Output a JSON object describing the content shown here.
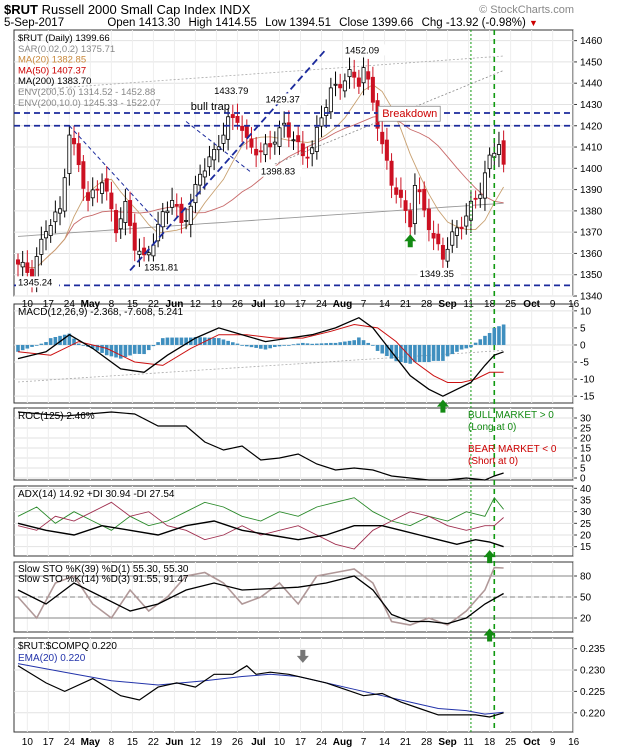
{
  "header": {
    "symbol": "$RUT",
    "description": "Russell 2000 Small Cap Index",
    "exchange": "INDX",
    "watermark": "© StockCharts.com",
    "date": "5-Sep-2017",
    "open_label": "Open",
    "open": "1413.30",
    "high_label": "High",
    "high": "1414.55",
    "low_label": "Low",
    "low": "1394.51",
    "close_label": "Close",
    "close": "1399.66",
    "chg_label": "Chg",
    "chg": "-13.92 (-0.98%)",
    "chg_arrow": "▼"
  },
  "chart_data": [
    {
      "type": "candlestick",
      "panel": "price",
      "legend": [
        {
          "text": "$RUT (Daily) 1399.66",
          "color": "#000000"
        },
        {
          "text": "SAR(0.02,0.2) 1375.71",
          "color": "#888888"
        },
        {
          "text": "MA(20) 1382.85",
          "color": "#c8883a"
        },
        {
          "text": "MA(50) 1407.37",
          "color": "#cc0000"
        },
        {
          "text": "MA(200) 1383.70",
          "color": "#000000"
        },
        {
          "text": "ENV(200,5.0) 1314.52 - 1452.88",
          "color": "#888888"
        },
        {
          "text": "ENV(200,10.0) 1245.33 - 1522.07",
          "color": "#888888"
        }
      ],
      "ylim": [
        1340,
        1465
      ],
      "yticks": [
        1340,
        1350,
        1360,
        1370,
        1380,
        1390,
        1400,
        1410,
        1420,
        1430,
        1440,
        1450,
        1460
      ],
      "xtick_labels": [
        "10",
        "17",
        "24",
        "May",
        "8",
        "15",
        "22",
        "Jun",
        "12",
        "19",
        "26",
        "Jul",
        "10",
        "17",
        "24",
        "Aug",
        "7",
        "14",
        "21",
        "28",
        "Sep",
        "11",
        "18",
        "25",
        "Oct",
        "9",
        "16"
      ],
      "price_labels": [
        "1345.24",
        "1351.81",
        "1433.79",
        "1429.37",
        "1452.09",
        "1398.83",
        "1349.35"
      ],
      "annotations": {
        "bull_trap": "bull trap",
        "breakdown": "Breakdown"
      },
      "horizontal_levels": [
        1345,
        1420,
        1426
      ],
      "close_path": [
        [
          0,
          1355
        ],
        [
          3,
          1350
        ],
        [
          6,
          1372
        ],
        [
          9,
          1380
        ],
        [
          11,
          1416
        ],
        [
          13,
          1402
        ],
        [
          15,
          1384
        ],
        [
          18,
          1395
        ],
        [
          21,
          1372
        ],
        [
          23,
          1382
        ],
        [
          25,
          1364
        ],
        [
          27,
          1357
        ],
        [
          29,
          1366
        ],
        [
          31,
          1378
        ],
        [
          33,
          1386
        ],
        [
          35,
          1374
        ],
        [
          37,
          1382
        ],
        [
          39,
          1398
        ],
        [
          42,
          1407
        ],
        [
          45,
          1422
        ],
        [
          47,
          1424
        ],
        [
          49,
          1412
        ],
        [
          52,
          1407
        ],
        [
          55,
          1414
        ],
        [
          57,
          1420
        ],
        [
          59,
          1414
        ],
        [
          61,
          1406
        ],
        [
          63,
          1409
        ],
        [
          65,
          1425
        ],
        [
          67,
          1436
        ],
        [
          69,
          1440
        ],
        [
          71,
          1444
        ],
        [
          73,
          1441
        ],
        [
          74,
          1447
        ],
        [
          76,
          1432
        ],
        [
          78,
          1410
        ],
        [
          80,
          1394
        ],
        [
          82,
          1384
        ],
        [
          84,
          1375
        ],
        [
          85,
          1392
        ],
        [
          87,
          1381
        ],
        [
          89,
          1366
        ],
        [
          91,
          1359
        ],
        [
          93,
          1368
        ],
        [
          95,
          1374
        ],
        [
          97,
          1382
        ],
        [
          99,
          1390
        ],
        [
          101,
          1404
        ],
        [
          103,
          1413
        ],
        [
          104,
          1400
        ]
      ]
    },
    {
      "type": "line",
      "panel": "macd",
      "legend": "MACD(12,26,9) -2.368, -7.608, 5.241",
      "ylim": [
        -17,
        12
      ],
      "yticks": [
        -15,
        -10,
        -5,
        0,
        5,
        10
      ],
      "macd": [
        [
          0,
          -4
        ],
        [
          6,
          -2
        ],
        [
          11,
          3
        ],
        [
          16,
          -1
        ],
        [
          22,
          -7
        ],
        [
          27,
          -8
        ],
        [
          32,
          -3
        ],
        [
          38,
          2
        ],
        [
          43,
          5
        ],
        [
          48,
          3
        ],
        [
          53,
          1
        ],
        [
          58,
          2
        ],
        [
          63,
          3
        ],
        [
          68,
          5
        ],
        [
          73,
          8
        ],
        [
          76,
          5
        ],
        [
          80,
          -2
        ],
        [
          84,
          -9
        ],
        [
          88,
          -13
        ],
        [
          91,
          -15
        ],
        [
          94,
          -13
        ],
        [
          97,
          -11
        ],
        [
          100,
          -6
        ],
        [
          102,
          -3
        ],
        [
          104,
          -2
        ]
      ],
      "signal": [
        [
          0,
          -2
        ],
        [
          7,
          -3
        ],
        [
          13,
          1
        ],
        [
          19,
          -1
        ],
        [
          25,
          -5
        ],
        [
          31,
          -6
        ],
        [
          37,
          -1
        ],
        [
          43,
          3
        ],
        [
          49,
          3
        ],
        [
          55,
          2
        ],
        [
          61,
          2
        ],
        [
          67,
          4
        ],
        [
          72,
          6
        ],
        [
          77,
          5
        ],
        [
          81,
          1
        ],
        [
          85,
          -5
        ],
        [
          89,
          -9
        ],
        [
          92,
          -11
        ],
        [
          95,
          -11
        ],
        [
          98,
          -10
        ],
        [
          101,
          -8
        ],
        [
          104,
          -8
        ]
      ]
    },
    {
      "type": "line",
      "panel": "roc",
      "legend": "ROC(125) 2.46%",
      "ylim": [
        -1,
        35
      ],
      "yticks": [
        0,
        5,
        10,
        15,
        20,
        25,
        30
      ],
      "notes": [
        "BULL MARKET > 0",
        "(Long at 0)",
        "BEAR MARKET < 0",
        "(Short at 0)"
      ],
      "roc": [
        [
          0,
          33
        ],
        [
          10,
          31
        ],
        [
          20,
          33
        ],
        [
          25,
          32
        ],
        [
          30,
          26
        ],
        [
          36,
          26
        ],
        [
          40,
          18
        ],
        [
          44,
          14
        ],
        [
          48,
          16
        ],
        [
          52,
          9
        ],
        [
          56,
          10
        ],
        [
          60,
          12
        ],
        [
          64,
          7
        ],
        [
          68,
          4
        ],
        [
          72,
          5
        ],
        [
          76,
          4
        ],
        [
          80,
          1
        ],
        [
          84,
          0
        ],
        [
          88,
          -1
        ],
        [
          92,
          -1
        ],
        [
          96,
          0
        ],
        [
          100,
          -1
        ],
        [
          102,
          1
        ],
        [
          104,
          2.5
        ]
      ]
    },
    {
      "type": "line",
      "panel": "adx",
      "legend": "ADX(14) 14.92 +DI 30.94 -DI 27.54",
      "ylim": [
        11,
        41
      ],
      "yticks": [
        15,
        20,
        25,
        30,
        35,
        40
      ],
      "adx": [
        [
          0,
          25
        ],
        [
          6,
          22
        ],
        [
          12,
          20
        ],
        [
          18,
          24
        ],
        [
          24,
          22
        ],
        [
          30,
          20
        ],
        [
          36,
          24
        ],
        [
          42,
          26
        ],
        [
          48,
          22
        ],
        [
          54,
          20
        ],
        [
          60,
          18
        ],
        [
          66,
          20
        ],
        [
          72,
          24
        ],
        [
          78,
          24
        ],
        [
          82,
          22
        ],
        [
          86,
          20
        ],
        [
          90,
          18
        ],
        [
          94,
          16
        ],
        [
          98,
          18
        ],
        [
          101,
          17
        ],
        [
          104,
          15
        ]
      ],
      "plus_di": [
        [
          0,
          28
        ],
        [
          4,
          32
        ],
        [
          8,
          25
        ],
        [
          12,
          30
        ],
        [
          16,
          26
        ],
        [
          20,
          22
        ],
        [
          24,
          28
        ],
        [
          28,
          24
        ],
        [
          32,
          26
        ],
        [
          36,
          30
        ],
        [
          40,
          34
        ],
        [
          44,
          32
        ],
        [
          48,
          28
        ],
        [
          52,
          26
        ],
        [
          56,
          30
        ],
        [
          60,
          28
        ],
        [
          64,
          32
        ],
        [
          68,
          34
        ],
        [
          72,
          36
        ],
        [
          76,
          30
        ],
        [
          80,
          26
        ],
        [
          84,
          24
        ],
        [
          88,
          28
        ],
        [
          92,
          26
        ],
        [
          96,
          30
        ],
        [
          100,
          28
        ],
        [
          102,
          36
        ],
        [
          104,
          31
        ]
      ],
      "minus_di": [
        [
          0,
          24
        ],
        [
          4,
          22
        ],
        [
          8,
          28
        ],
        [
          12,
          26
        ],
        [
          16,
          30
        ],
        [
          20,
          34
        ],
        [
          24,
          28
        ],
        [
          28,
          30
        ],
        [
          32,
          24
        ],
        [
          36,
          22
        ],
        [
          40,
          18
        ],
        [
          44,
          20
        ],
        [
          48,
          24
        ],
        [
          52,
          20
        ],
        [
          56,
          22
        ],
        [
          60,
          24
        ],
        [
          64,
          20
        ],
        [
          68,
          16
        ],
        [
          72,
          14
        ],
        [
          76,
          22
        ],
        [
          80,
          26
        ],
        [
          84,
          30
        ],
        [
          88,
          28
        ],
        [
          92,
          24
        ],
        [
          96,
          22
        ],
        [
          100,
          24
        ],
        [
          102,
          24
        ],
        [
          104,
          27.5
        ]
      ]
    },
    {
      "type": "line",
      "panel": "stochastics",
      "legend": [
        "Slow STO %K(39) %D(1) 55.30, 55.30",
        "Slow STO %K(14) %D(3) 91.55, 91.47"
      ],
      "ylim": [
        0,
        100
      ],
      "yticks": [
        20,
        50,
        80
      ],
      "k39": [
        [
          0,
          60
        ],
        [
          6,
          40
        ],
        [
          12,
          70
        ],
        [
          18,
          50
        ],
        [
          24,
          30
        ],
        [
          30,
          40
        ],
        [
          36,
          60
        ],
        [
          42,
          70
        ],
        [
          48,
          60
        ],
        [
          54,
          62
        ],
        [
          60,
          64
        ],
        [
          66,
          70
        ],
        [
          72,
          80
        ],
        [
          76,
          60
        ],
        [
          80,
          25
        ],
        [
          84,
          15
        ],
        [
          88,
          15
        ],
        [
          92,
          12
        ],
        [
          96,
          20
        ],
        [
          100,
          40
        ],
        [
          104,
          55
        ]
      ],
      "k14": [
        [
          0,
          50
        ],
        [
          4,
          20
        ],
        [
          8,
          70
        ],
        [
          12,
          80
        ],
        [
          16,
          40
        ],
        [
          20,
          20
        ],
        [
          24,
          60
        ],
        [
          28,
          30
        ],
        [
          32,
          50
        ],
        [
          36,
          80
        ],
        [
          40,
          85
        ],
        [
          44,
          70
        ],
        [
          48,
          40
        ],
        [
          52,
          50
        ],
        [
          56,
          70
        ],
        [
          60,
          40
        ],
        [
          64,
          80
        ],
        [
          68,
          85
        ],
        [
          72,
          90
        ],
        [
          76,
          70
        ],
        [
          80,
          15
        ],
        [
          84,
          10
        ],
        [
          88,
          20
        ],
        [
          92,
          10
        ],
        [
          96,
          30
        ],
        [
          100,
          60
        ],
        [
          102,
          92
        ],
        [
          104,
          91.5
        ]
      ]
    },
    {
      "type": "line",
      "panel": "ratio",
      "legend": "$RUT:$COMPQ 0.220",
      "ema_legend": "EMA(20) 0.220",
      "ylim": [
        0.2155,
        0.2375
      ],
      "yticks": [
        0.22,
        0.225,
        0.23,
        0.235
      ],
      "ratio": [
        [
          0,
          0.231
        ],
        [
          6,
          0.227
        ],
        [
          10,
          0.225
        ],
        [
          16,
          0.228
        ],
        [
          22,
          0.224
        ],
        [
          26,
          0.223
        ],
        [
          30,
          0.226
        ],
        [
          34,
          0.227
        ],
        [
          38,
          0.226
        ],
        [
          42,
          0.229
        ],
        [
          46,
          0.229
        ],
        [
          49,
          0.231
        ],
        [
          51,
          0.229
        ],
        [
          54,
          0.2295
        ],
        [
          58,
          0.229
        ],
        [
          62,
          0.228
        ],
        [
          66,
          0.227
        ],
        [
          70,
          0.2255
        ],
        [
          74,
          0.224
        ],
        [
          78,
          0.2245
        ],
        [
          82,
          0.2225
        ],
        [
          86,
          0.221
        ],
        [
          90,
          0.2195
        ],
        [
          94,
          0.2195
        ],
        [
          98,
          0.2195
        ],
        [
          101,
          0.219
        ],
        [
          104,
          0.22
        ]
      ],
      "ema": [
        [
          0,
          0.2315
        ],
        [
          10,
          0.2295
        ],
        [
          20,
          0.2275
        ],
        [
          30,
          0.2265
        ],
        [
          40,
          0.2275
        ],
        [
          48,
          0.2285
        ],
        [
          54,
          0.229
        ],
        [
          60,
          0.2285
        ],
        [
          66,
          0.227
        ],
        [
          72,
          0.2255
        ],
        [
          78,
          0.224
        ],
        [
          84,
          0.2225
        ],
        [
          90,
          0.221
        ],
        [
          96,
          0.2205
        ],
        [
          100,
          0.2197
        ],
        [
          104,
          0.2201
        ]
      ]
    }
  ]
}
